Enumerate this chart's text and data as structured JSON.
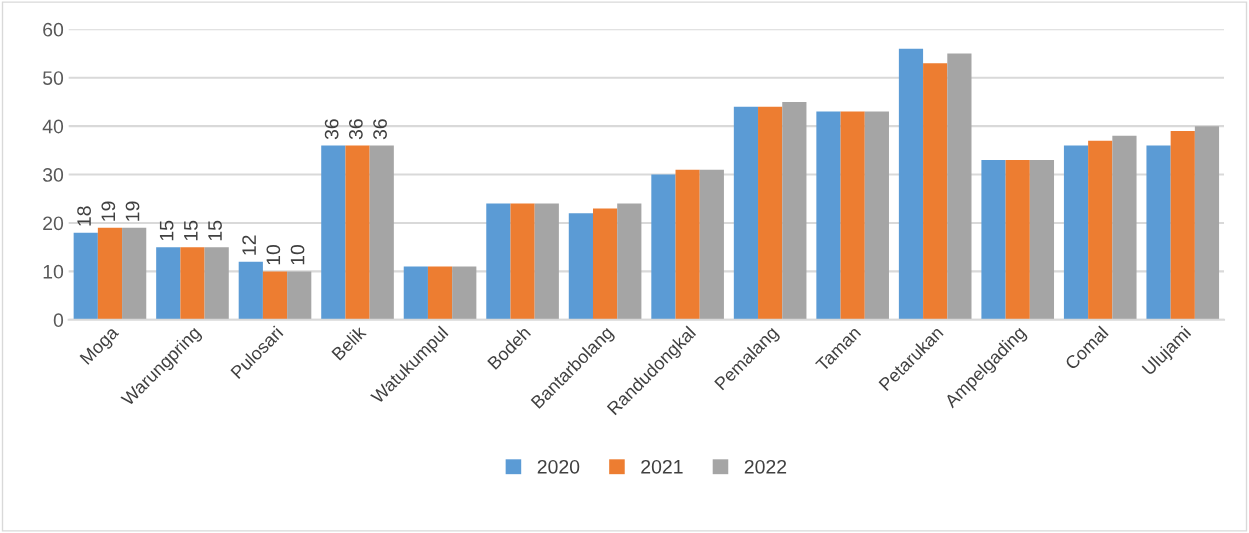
{
  "chart_data": {
    "type": "bar",
    "categories": [
      "Moga",
      "Warungpring",
      "Pulosari",
      "Belik",
      "Watukumpul",
      "Bodeh",
      "Bantarbolang",
      "Randudongkal",
      "Pemalang",
      "Taman",
      "Petarukan",
      "Ampelgading",
      "Comal",
      "Ulujami"
    ],
    "series": [
      {
        "name": "2020",
        "color": "#5b9bd5",
        "values": [
          18,
          15,
          12,
          36,
          11,
          24,
          22,
          30,
          44,
          43,
          56,
          33,
          36,
          36
        ],
        "value_labels": [
          "18",
          "15",
          "12",
          "36",
          null,
          null,
          null,
          null,
          null,
          null,
          null,
          null,
          null,
          null
        ]
      },
      {
        "name": "2021",
        "color": "#ed7d31",
        "values": [
          19,
          15,
          10,
          36,
          11,
          24,
          23,
          31,
          44,
          43,
          53,
          33,
          37,
          39
        ],
        "value_labels": [
          "19",
          "15",
          "10",
          "36",
          null,
          null,
          null,
          null,
          null,
          null,
          null,
          null,
          null,
          null
        ]
      },
      {
        "name": "2022",
        "color": "#a5a5a5",
        "values": [
          19,
          15,
          10,
          36,
          11,
          24,
          24,
          31,
          45,
          43,
          55,
          33,
          38,
          40
        ],
        "value_labels": [
          "19",
          "15",
          "10",
          "36",
          null,
          null,
          null,
          null,
          null,
          null,
          null,
          null,
          null,
          null
        ]
      }
    ],
    "ylim": [
      0,
      60
    ],
    "yticks": [
      0,
      10,
      20,
      30,
      40,
      50,
      60
    ],
    "grid": "y",
    "legend": "bottom"
  }
}
